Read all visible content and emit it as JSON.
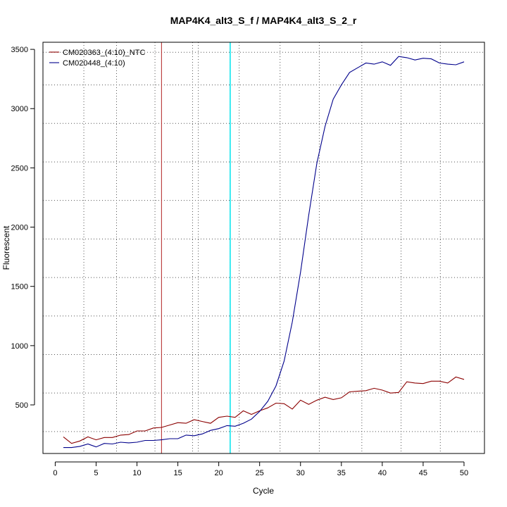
{
  "chart_data": {
    "type": "line",
    "title": "MAP4K4_alt3_S_f / MAP4K4_alt3_S_2_r",
    "xlabel": "Cycle",
    "ylabel": "Fluorescent",
    "xlim": [
      -1.5,
      52.5
    ],
    "ylim": [
      90,
      3560
    ],
    "x_ticks": [
      0,
      5,
      10,
      15,
      20,
      25,
      30,
      35,
      40,
      45,
      50
    ],
    "y_ticks": [
      500,
      1000,
      1500,
      2000,
      2500,
      3000,
      3500
    ],
    "grid": {
      "vertical_x": [
        3.5,
        7.5,
        12.2,
        16.8,
        17.5,
        21.4,
        22.5,
        27.5,
        32.3,
        37.5,
        42.3,
        47.1
      ],
      "horizontal_y": [
        275,
        600,
        925,
        1250,
        1575,
        1900,
        2225,
        2550,
        2875,
        3200,
        3475
      ]
    },
    "threshold_lines": [
      {
        "x": 13.0,
        "color": "#b22222"
      },
      {
        "x": 21.4,
        "color": "#00e5ee"
      }
    ],
    "legend": {
      "position": "top-left"
    },
    "x": [
      1,
      2,
      3,
      4,
      5,
      6,
      7,
      8,
      9,
      10,
      11,
      12,
      13,
      14,
      15,
      16,
      17,
      18,
      19,
      20,
      21,
      22,
      23,
      24,
      25,
      26,
      27,
      28,
      29,
      30,
      31,
      32,
      33,
      34,
      35,
      36,
      37,
      38,
      39,
      40,
      41,
      42,
      43,
      44,
      45,
      46,
      47,
      48,
      49,
      50
    ],
    "series": [
      {
        "name": "CM020363_(4:10)_NTC",
        "color": "#8b0000",
        "values": [
          230,
          175,
          195,
          230,
          205,
          225,
          225,
          245,
          250,
          280,
          280,
          305,
          310,
          330,
          350,
          345,
          375,
          360,
          345,
          395,
          405,
          395,
          450,
          420,
          450,
          475,
          515,
          510,
          465,
          540,
          505,
          540,
          565,
          545,
          560,
          610,
          615,
          620,
          640,
          625,
          600,
          605,
          695,
          685,
          680,
          700,
          700,
          685,
          735,
          715
        ]
      },
      {
        "name": "CM020448_(4:10)",
        "color": "#00008b",
        "values": [
          140,
          140,
          150,
          170,
          145,
          175,
          170,
          185,
          180,
          185,
          200,
          200,
          205,
          215,
          215,
          245,
          240,
          255,
          285,
          300,
          325,
          320,
          345,
          380,
          445,
          530,
          660,
          870,
          1200,
          1620,
          2100,
          2540,
          2850,
          3080,
          3200,
          3305,
          3345,
          3385,
          3375,
          3395,
          3365,
          3440,
          3430,
          3410,
          3425,
          3420,
          3385,
          3375,
          3370,
          3395
        ]
      }
    ]
  }
}
